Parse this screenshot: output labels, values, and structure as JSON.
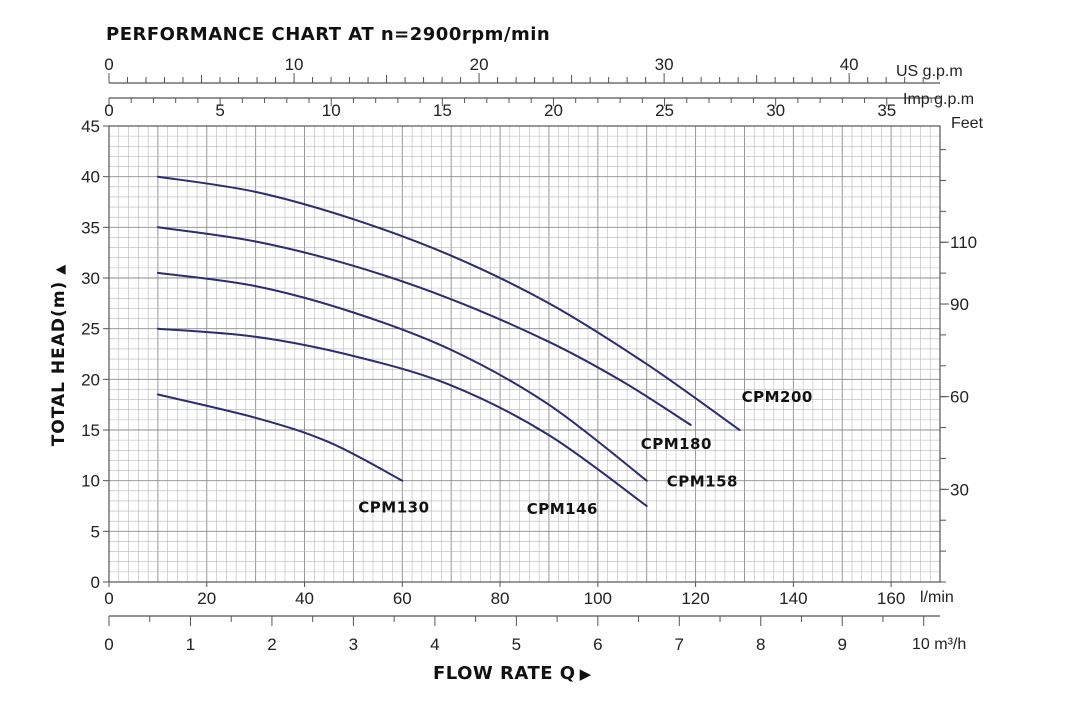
{
  "chart_data": {
    "type": "line",
    "title": "PERFORMANCE CHART AT n=2900rpm/min",
    "ylabel": "TOTAL HEAD(m)",
    "ylabel_arrow": "▲",
    "xlabel": "FLOW RATE Q",
    "xlabel_arrow": "▶",
    "x_unit": "l/min",
    "xlim": [
      0,
      170
    ],
    "ylim": [
      0,
      45
    ],
    "grid": true,
    "curve_color": "#2b2d6e",
    "x_ticks": [
      0,
      20,
      40,
      60,
      80,
      100,
      120,
      140,
      160
    ],
    "y_ticks": [
      0,
      5,
      10,
      15,
      20,
      25,
      30,
      35,
      40,
      45
    ],
    "right_axis": {
      "unit": "Feet",
      "ticks": [
        30,
        60,
        90,
        110
      ]
    },
    "top_axis_us": {
      "unit": "US g.p.m",
      "ticks": [
        0,
        10,
        20,
        30,
        40
      ]
    },
    "top_axis_imp": {
      "unit": "Imp g.p.m",
      "ticks": [
        0,
        5,
        10,
        15,
        20,
        25,
        30,
        35
      ]
    },
    "bottom_axis_m3h": {
      "unit": "10 m³/h",
      "ticks": [
        0,
        1,
        2,
        3,
        4,
        5,
        6,
        7,
        8,
        9
      ]
    },
    "series": [
      {
        "name": "CPM200",
        "x": [
          10,
          30,
          50,
          70,
          90,
          110,
          129
        ],
        "y": [
          40,
          38.5,
          35.8,
          32.2,
          27.5,
          21.5,
          15
        ]
      },
      {
        "name": "CPM180",
        "x": [
          10,
          30,
          50,
          70,
          90,
          105,
          119
        ],
        "y": [
          35,
          33.6,
          31.2,
          27.9,
          23.7,
          19.8,
          15.5
        ]
      },
      {
        "name": "CPM158",
        "x": [
          10,
          30,
          50,
          70,
          90,
          110
        ],
        "y": [
          30.5,
          29.2,
          26.6,
          22.9,
          17.5,
          10
        ]
      },
      {
        "name": "CPM146",
        "x": [
          10,
          30,
          50,
          70,
          90,
          110
        ],
        "y": [
          25,
          24.2,
          22.3,
          19.4,
          14.5,
          7.5
        ]
      },
      {
        "name": "CPM130",
        "x": [
          10,
          30,
          45,
          60
        ],
        "y": [
          18.5,
          16.2,
          13.8,
          10
        ]
      }
    ]
  }
}
